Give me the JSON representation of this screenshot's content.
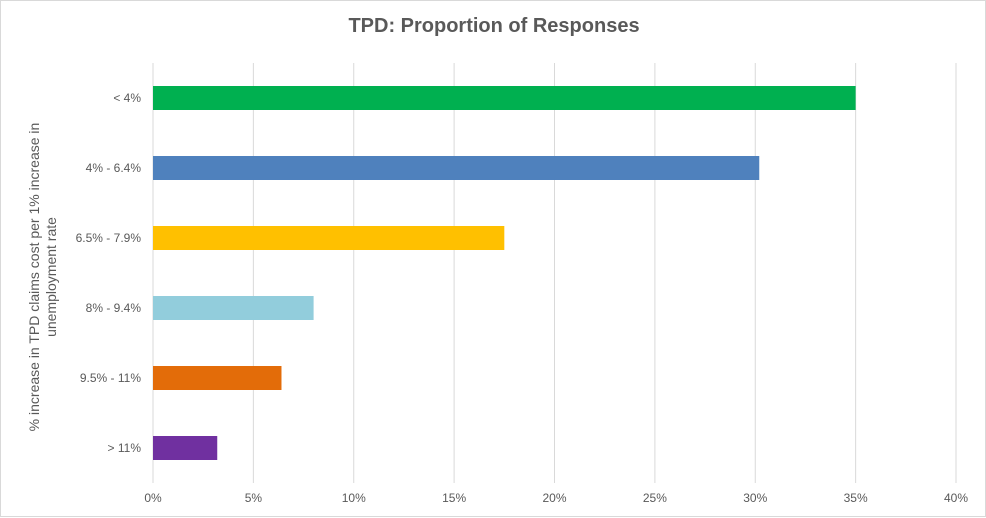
{
  "chart_data": {
    "type": "bar",
    "orientation": "horizontal",
    "title": "TPD: Proportion  of Responses",
    "ylabel_lines": [
      "% increase in TPD claims cost per 1% increase in",
      "unemployment rate"
    ],
    "xlabel": "",
    "categories": [
      "< 4%",
      "4% - 6.4%",
      "6.5% - 7.9%",
      "8% - 9.4%",
      "9.5% - 11%",
      "> 11%"
    ],
    "values": [
      35,
      30.2,
      17.5,
      8,
      6.4,
      3.2
    ],
    "colors": [
      "#00b050",
      "#4f81bd",
      "#ffc000",
      "#92cddc",
      "#e36c09",
      "#7030a0"
    ],
    "xlim": [
      0,
      40
    ],
    "xticks": [
      0,
      5,
      10,
      15,
      20,
      25,
      30,
      35,
      40
    ],
    "xtick_labels": [
      "0%",
      "5%",
      "10%",
      "15%",
      "20%",
      "25%",
      "30%",
      "35%",
      "40%"
    ],
    "grid": true,
    "legend": "none"
  }
}
